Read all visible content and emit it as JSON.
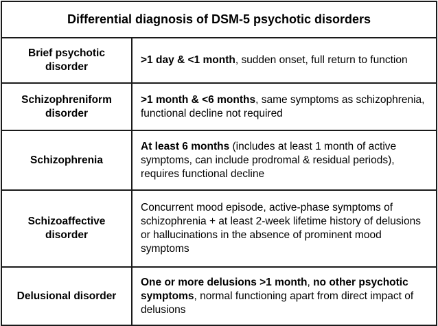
{
  "title": "Differential diagnosis of DSM-5 psychotic disorders",
  "rows": [
    {
      "diagnosis": "Brief psychotic disorder",
      "bold": ">1 day & <1 month",
      "rest": ", sudden onset, full return to function",
      "bold2": "",
      "rest2": ""
    },
    {
      "diagnosis": "Schizophreniform disorder",
      "bold": ">1 month & <6 months",
      "rest": ", same symptoms as schizophrenia, functional decline not required",
      "bold2": "",
      "rest2": ""
    },
    {
      "diagnosis": "Schizophrenia",
      "bold": "At least 6 months",
      "rest": " (includes at least 1 month of active symptoms, can include prodromal & residual periods), requires functional decline",
      "bold2": "",
      "rest2": ""
    },
    {
      "diagnosis": "Schizoaffective disorder",
      "bold": "",
      "rest": "Concurrent mood episode, active-phase symptoms of schizophrenia + at least 2-week lifetime history of delusions or hallucinations in the absence of prominent mood symptoms",
      "bold2": "",
      "rest2": ""
    },
    {
      "diagnosis": "Delusional disorder",
      "bold": "One or more delusions >1 month",
      "rest": ", ",
      "bold2": "no other psychotic symptoms",
      "rest2": ", normal functioning apart from direct impact of delusions"
    }
  ]
}
